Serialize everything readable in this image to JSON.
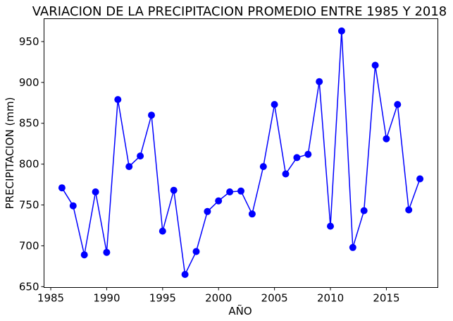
{
  "chart_data": {
    "type": "line",
    "title": "VARIACION DE LA PRECIPITACION PROMEDIO ENTRE 1985 Y 2018",
    "xlabel": "AÑO",
    "ylabel": "PRECIPITACION (mm)",
    "xlim": [
      1984.4,
      2019.6
    ],
    "ylim": [
      649,
      978
    ],
    "xticks": [
      1985,
      1990,
      1995,
      2000,
      2005,
      2010,
      2015
    ],
    "yticks": [
      650,
      700,
      750,
      800,
      850,
      900,
      950
    ],
    "grid": false,
    "color": "#0000ff",
    "x": [
      1986,
      1987,
      1988,
      1989,
      1990,
      1991,
      1992,
      1993,
      1994,
      1995,
      1996,
      1997,
      1998,
      1999,
      2000,
      2001,
      2002,
      2003,
      2004,
      2005,
      2006,
      2007,
      2008,
      2009,
      2010,
      2011,
      2012,
      2013,
      2014,
      2015,
      2016,
      2017,
      2018
    ],
    "y": [
      771,
      749,
      689,
      766,
      692,
      879,
      797,
      810,
      860,
      718,
      768,
      665,
      693,
      742,
      755,
      766,
      767,
      739,
      797,
      873,
      788,
      808,
      812,
      901,
      724,
      963,
      698,
      743,
      921,
      831,
      873,
      744,
      782
    ]
  }
}
